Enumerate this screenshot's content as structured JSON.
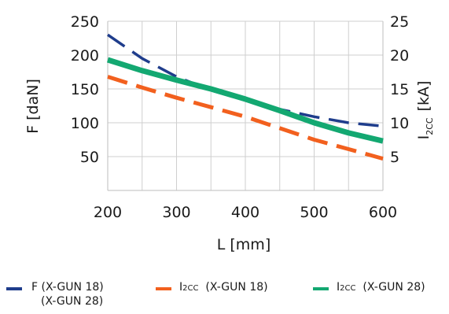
{
  "chart_data": {
    "type": "line",
    "x": [
      200,
      250,
      300,
      350,
      400,
      450,
      500,
      550,
      600
    ],
    "xlabel": "L [mm]",
    "xlim": [
      200,
      600
    ],
    "xticks": [
      "200",
      "300",
      "400",
      "500",
      "600"
    ],
    "ylabel_left": "F [daN]",
    "ylim_left": [
      0,
      250
    ],
    "yticks_left": [
      "50",
      "100",
      "150",
      "200",
      "250"
    ],
    "ylabel_right": {
      "main": "I",
      "sub": "2CC",
      "unit": "[kA]"
    },
    "ylim_right": [
      0,
      25
    ],
    "yticks_right": [
      "5",
      "10",
      "15",
      "20",
      "25"
    ],
    "grid": true,
    "legend_position": "bottom",
    "series": [
      {
        "name": "F (X-GUN 18)",
        "name_line2": "(X-GUN 28)",
        "axis": "left",
        "style": "dashed",
        "color": "#1f3d8c",
        "values": [
          230,
          195,
          168,
          148,
          133,
          120,
          109,
          100,
          95
        ]
      },
      {
        "name": {
          "main": "I",
          "sub": "2CC",
          "rest": "(X-GUN 18)"
        },
        "axis": "right",
        "style": "dashed",
        "color": "#f2601e",
        "values": [
          16.8,
          15.2,
          13.7,
          12.3,
          10.9,
          9.2,
          7.5,
          6.1,
          4.7
        ]
      },
      {
        "name": {
          "main": "I",
          "sub": "2CC",
          "rest": "(X-GUN 28)"
        },
        "axis": "right",
        "style": "solid",
        "color": "#13a871",
        "values": [
          19.3,
          17.7,
          16.3,
          15.0,
          13.5,
          11.8,
          10.0,
          8.5,
          7.3
        ]
      }
    ]
  }
}
